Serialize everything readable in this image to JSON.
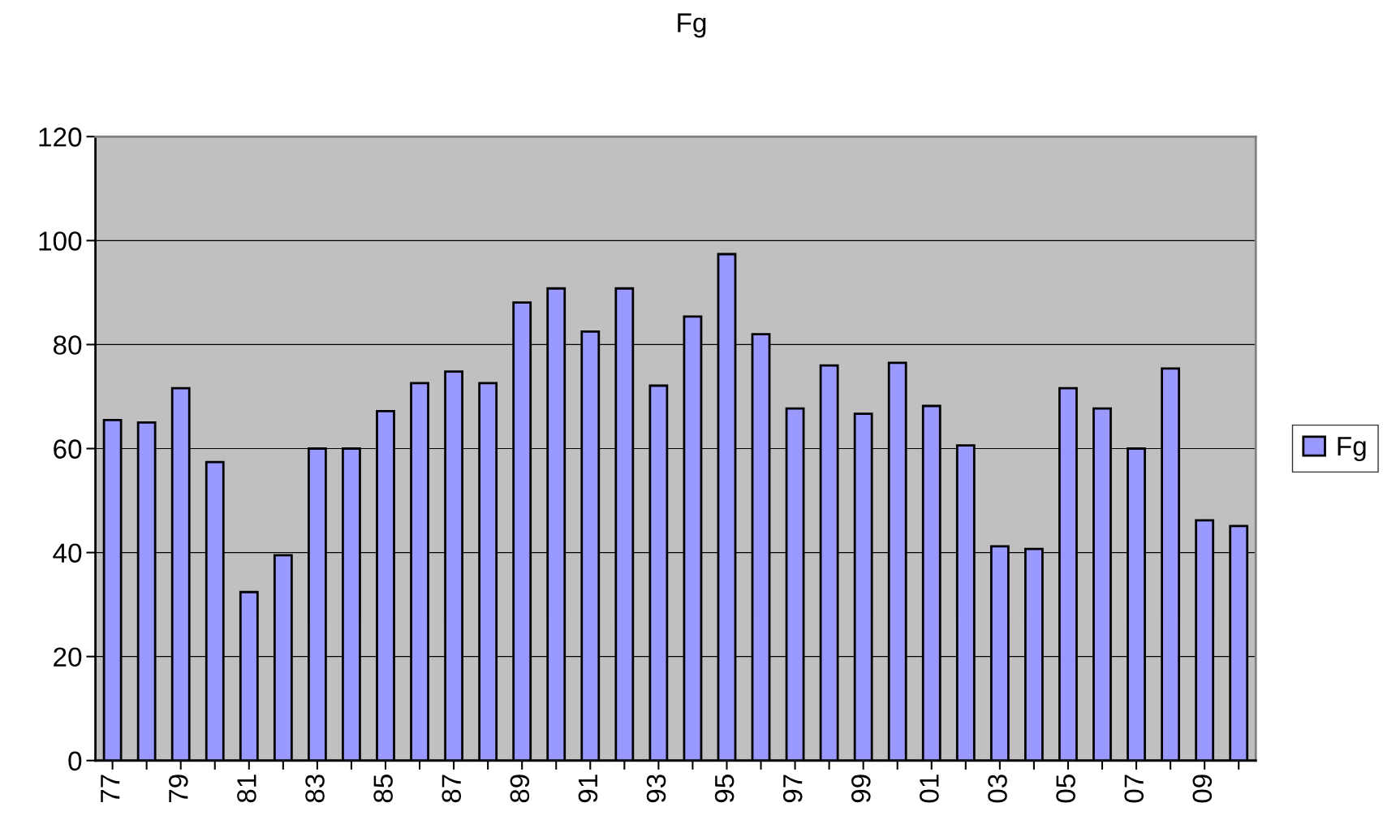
{
  "chart_data": {
    "type": "bar",
    "title": "Fg",
    "categories": [
      "77",
      null,
      "79",
      null,
      "81",
      null,
      "83",
      null,
      "85",
      null,
      "87",
      null,
      "89",
      null,
      "91",
      null,
      "93",
      null,
      "95",
      null,
      "97",
      null,
      "99",
      null,
      "01",
      null,
      "03",
      null,
      "05",
      null,
      "07",
      null,
      "09",
      null
    ],
    "series": [
      {
        "name": "Fg",
        "color": "#9999ff",
        "values": [
          65.5,
          65.0,
          71.6,
          57.4,
          32.4,
          39.5,
          60,
          60,
          67.2,
          72.6,
          74.8,
          72.6,
          88.1,
          90.8,
          82.5,
          90.8,
          72.1,
          85.4,
          97.4,
          82.0,
          67.7,
          76.0,
          66.7,
          76.5,
          68.2,
          60.6,
          41.2,
          40.7,
          71.6,
          67.7,
          60,
          75.4,
          46.2,
          45.1
        ]
      }
    ],
    "ylim": [
      0,
      120
    ],
    "yticks": [
      0,
      20,
      40,
      60,
      80,
      100,
      120
    ],
    "grid": "y",
    "legend": "right"
  }
}
